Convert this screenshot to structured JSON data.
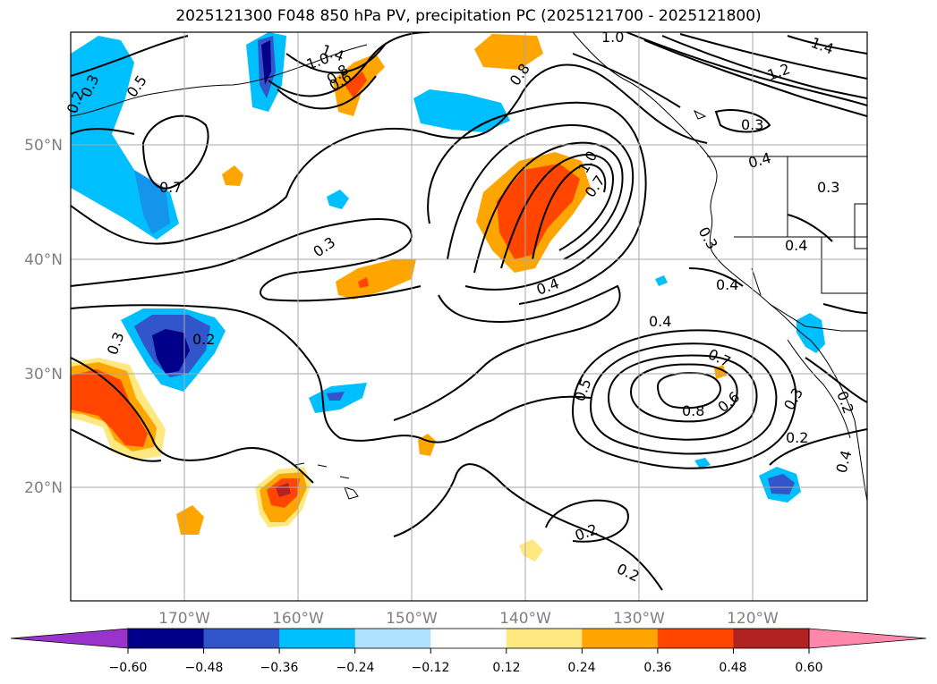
{
  "title": "2025121300 F048 850 hPa PV, precipitation PC (2025121700 - 2025121800)",
  "lat_labels": [
    "50°N",
    "40°N",
    "30°N",
    "20°N"
  ],
  "lon_labels": [
    "170°W",
    "160°W",
    "150°W",
    "140°W",
    "130°W",
    "120°W"
  ],
  "colorbar": {
    "ticks": [
      "−0.60",
      "−0.48",
      "−0.36",
      "−0.24",
      "−0.12",
      "0.12",
      "0.24",
      "0.36",
      "0.48",
      "0.60"
    ],
    "colors": [
      "#9933cc",
      "#00008b",
      "#3355cc",
      "#00bfff",
      "#b0e2ff",
      "#ffffff",
      "#ffe880",
      "#ffa500",
      "#ff4500",
      "#b22222",
      "#ff88aa"
    ]
  },
  "contour_labels": [
    "1.0",
    "1.4",
    "1.0",
    "0.6",
    "0.8",
    "0.3",
    "0.5",
    "0.2",
    "0.7",
    "0.8",
    "1.0",
    "0.7",
    "1.2",
    "1.4",
    "0.3",
    "0.4",
    "0.3",
    "0.3",
    "0.4",
    "0.3",
    "0.4",
    "0.4",
    "0.7",
    "0.8",
    "0.6",
    "0.5",
    "0.3",
    "0.2",
    "0.3",
    "0.2",
    "0.2",
    "0.2",
    "0.4",
    "0.2",
    "0.4"
  ],
  "map": {
    "lon_range": [
      -180,
      -110
    ],
    "lat_range": [
      10,
      60
    ],
    "fill_colors": {
      "pos1": "#ffe880",
      "pos2": "#ffa500",
      "pos3": "#ff4500",
      "pos4": "#b22222",
      "neg1": "#b0e2ff",
      "neg2": "#00bfff",
      "neg3": "#3355cc",
      "neg4": "#00008b"
    }
  }
}
